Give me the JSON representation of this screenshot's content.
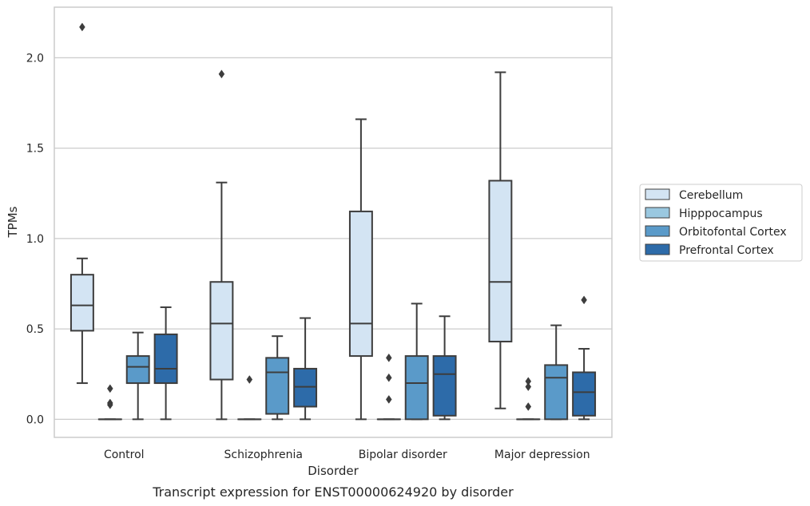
{
  "chart_data": {
    "type": "boxplot",
    "caption": "Transcript expression for ENST00000624920 by disorder",
    "xlabel": "Disorder",
    "ylabel": "TPMs",
    "ylim": [
      -0.1,
      2.28
    ],
    "yticks": [
      0.0,
      0.5,
      1.0,
      1.5,
      2.0
    ],
    "ytick_labels": [
      "0.0",
      "0.5",
      "1.0",
      "1.5",
      "2.0"
    ],
    "grid": true,
    "legend_position": "right",
    "categories": [
      "Control",
      "Schizophrenia",
      "Bipolar disorder",
      "Major depression"
    ],
    "series": [
      {
        "name": "Cerebellum",
        "color": "#d3e4f3",
        "boxes": [
          {
            "whislo": 0.2,
            "q1": 0.49,
            "med": 0.63,
            "q3": 0.8,
            "whishi": 0.89,
            "fliers": [
              2.17
            ]
          },
          {
            "whislo": 0.0,
            "q1": 0.22,
            "med": 0.53,
            "q3": 0.76,
            "whishi": 1.31,
            "fliers": [
              1.91
            ]
          },
          {
            "whislo": 0.0,
            "q1": 0.35,
            "med": 0.53,
            "q3": 1.15,
            "whishi": 1.66,
            "fliers": []
          },
          {
            "whislo": 0.06,
            "q1": 0.43,
            "med": 0.76,
            "q3": 1.32,
            "whishi": 1.92,
            "fliers": []
          }
        ]
      },
      {
        "name": "Hipppocampus",
        "color": "#9ac8e0",
        "boxes": [
          {
            "whislo": 0.0,
            "q1": 0.0,
            "med": 0.0,
            "q3": 0.0,
            "whishi": 0.0,
            "fliers": [
              0.08,
              0.09,
              0.17
            ]
          },
          {
            "whislo": 0.0,
            "q1": 0.0,
            "med": 0.0,
            "q3": 0.0,
            "whishi": 0.0,
            "fliers": [
              0.22
            ]
          },
          {
            "whislo": 0.0,
            "q1": 0.0,
            "med": 0.0,
            "q3": 0.0,
            "whishi": 0.0,
            "fliers": [
              0.11,
              0.23,
              0.34
            ]
          },
          {
            "whislo": 0.0,
            "q1": 0.0,
            "med": 0.0,
            "q3": 0.0,
            "whishi": 0.0,
            "fliers": [
              0.07,
              0.18,
              0.21
            ]
          }
        ]
      },
      {
        "name": "Orbitofontal Cortex",
        "color": "#5a9ac9",
        "boxes": [
          {
            "whislo": 0.0,
            "q1": 0.2,
            "med": 0.29,
            "q3": 0.35,
            "whishi": 0.48,
            "fliers": []
          },
          {
            "whislo": 0.0,
            "q1": 0.03,
            "med": 0.26,
            "q3": 0.34,
            "whishi": 0.46,
            "fliers": []
          },
          {
            "whislo": 0.0,
            "q1": 0.0,
            "med": 0.2,
            "q3": 0.35,
            "whishi": 0.64,
            "fliers": []
          },
          {
            "whislo": 0.0,
            "q1": 0.0,
            "med": 0.23,
            "q3": 0.3,
            "whishi": 0.52,
            "fliers": []
          }
        ]
      },
      {
        "name": "Prefrontal Cortex",
        "color": "#2d6ba9",
        "boxes": [
          {
            "whislo": 0.0,
            "q1": 0.2,
            "med": 0.28,
            "q3": 0.47,
            "whishi": 0.62,
            "fliers": []
          },
          {
            "whislo": 0.0,
            "q1": 0.07,
            "med": 0.18,
            "q3": 0.28,
            "whishi": 0.56,
            "fliers": []
          },
          {
            "whislo": 0.0,
            "q1": 0.02,
            "med": 0.25,
            "q3": 0.35,
            "whishi": 0.57,
            "fliers": []
          },
          {
            "whislo": 0.0,
            "q1": 0.02,
            "med": 0.15,
            "q3": 0.26,
            "whishi": 0.39,
            "fliers": [
              0.66
            ]
          }
        ]
      }
    ]
  }
}
